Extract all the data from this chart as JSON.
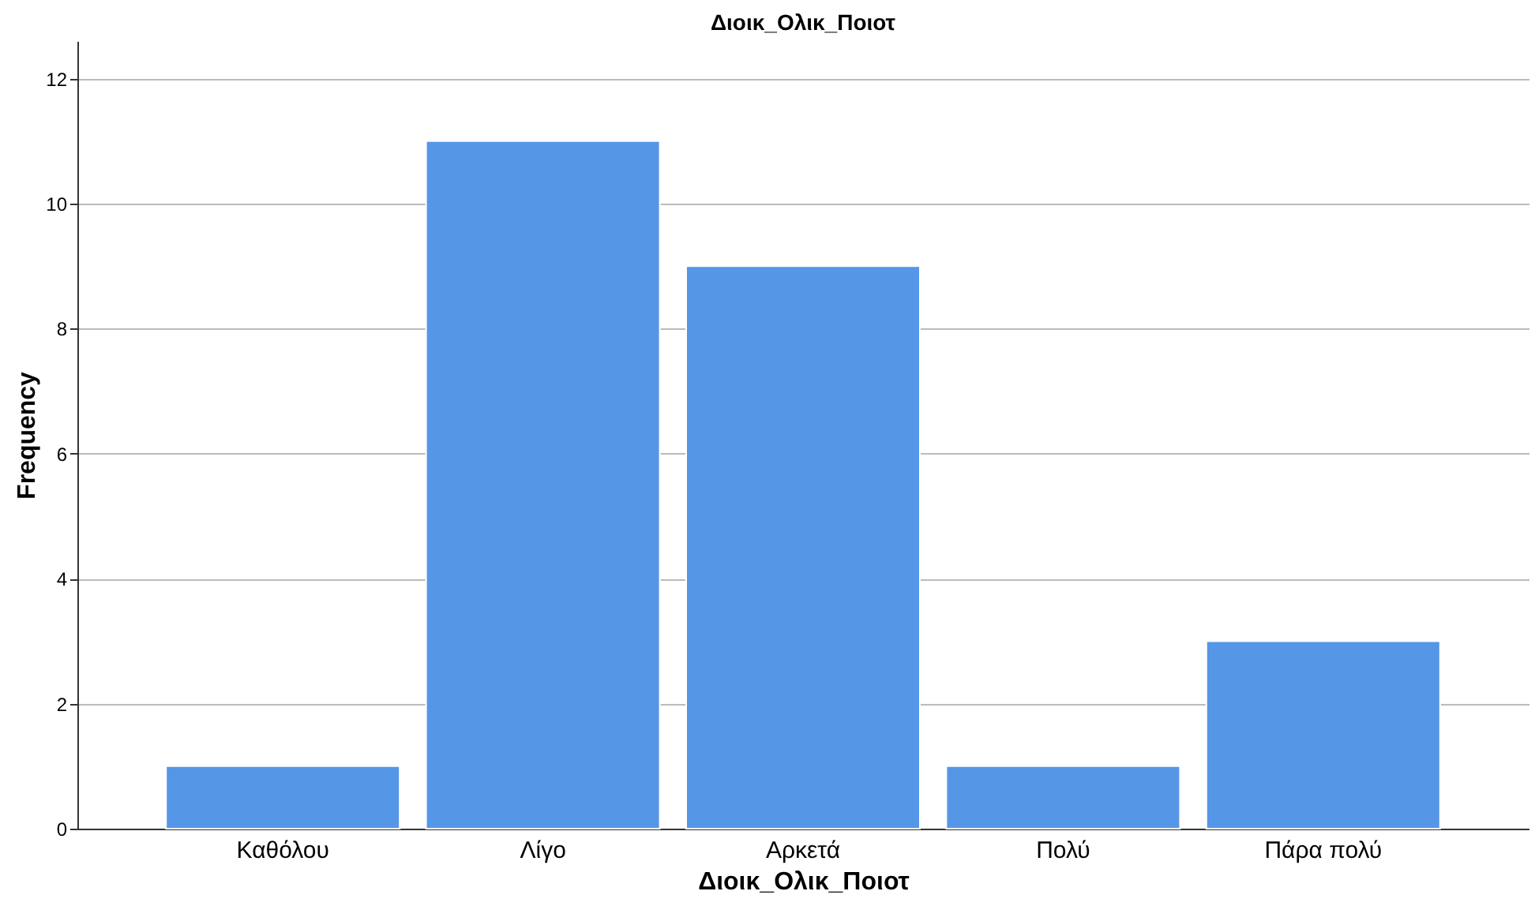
{
  "chart_data": {
    "type": "bar",
    "title": "Διοικ_Ολικ_Ποιοτ",
    "xlabel": "Διοικ_Ολικ_Ποιοτ",
    "ylabel": "Frequency",
    "categories": [
      "Καθόλου",
      "Λίγο",
      "Αρκετά",
      "Πολύ",
      "Πάρα πολύ"
    ],
    "values": [
      1,
      11,
      9,
      1,
      3
    ],
    "color": "#5596e6",
    "ylim": [
      0,
      12.6
    ],
    "yticks": [
      0,
      2,
      4,
      6,
      8,
      10,
      12
    ],
    "grid": "y"
  }
}
